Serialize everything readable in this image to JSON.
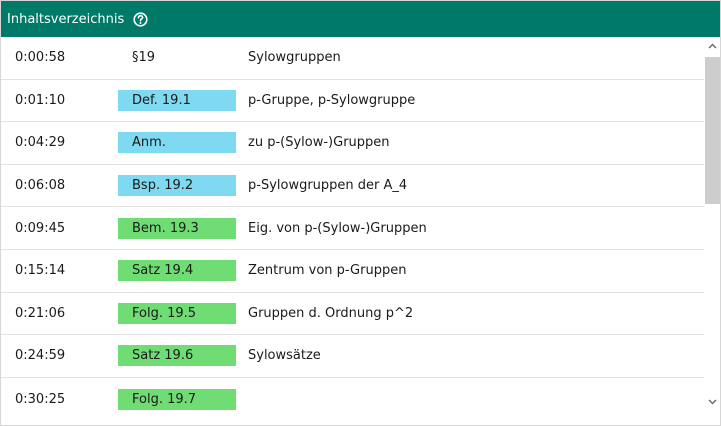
{
  "header": {
    "title": "Inhaltsverzeichnis",
    "help_icon": "question-circle-icon",
    "background": "#007a68"
  },
  "colors": {
    "definition": "#7fd9f0",
    "theorem": "#6fdc74"
  },
  "rows": [
    {
      "time": "0:00:58",
      "tag": "§19",
      "tag_kind": "plain",
      "desc": "Sylowgruppen"
    },
    {
      "time": "0:01:10",
      "tag": "Def. 19.1",
      "tag_kind": "definition",
      "desc": "p-Gruppe, p-Sylowgruppe"
    },
    {
      "time": "0:04:29",
      "tag": "Anm.",
      "tag_kind": "definition",
      "desc": "zu p-(Sylow-)Gruppen"
    },
    {
      "time": "0:06:08",
      "tag": "Bsp. 19.2",
      "tag_kind": "definition",
      "desc": "p-Sylowgruppen der A_4"
    },
    {
      "time": "0:09:45",
      "tag": "Bem. 19.3",
      "tag_kind": "theorem",
      "desc": "Eig. von p-(Sylow-)Gruppen"
    },
    {
      "time": "0:15:14",
      "tag": "Satz 19.4",
      "tag_kind": "theorem",
      "desc": "Zentrum von p-Gruppen"
    },
    {
      "time": "0:21:06",
      "tag": "Folg. 19.5",
      "tag_kind": "theorem",
      "desc": "Gruppen d. Ordnung p^2"
    },
    {
      "time": "0:24:59",
      "tag": "Satz 19.6",
      "tag_kind": "theorem",
      "desc": "Sylowsätze"
    },
    {
      "time": "0:30:25",
      "tag": "Folg. 19.7",
      "tag_kind": "theorem",
      "desc": ""
    }
  ],
  "scrollbar": {
    "up_icon": "chevron-up-icon",
    "down_icon": "chevron-down-icon"
  }
}
